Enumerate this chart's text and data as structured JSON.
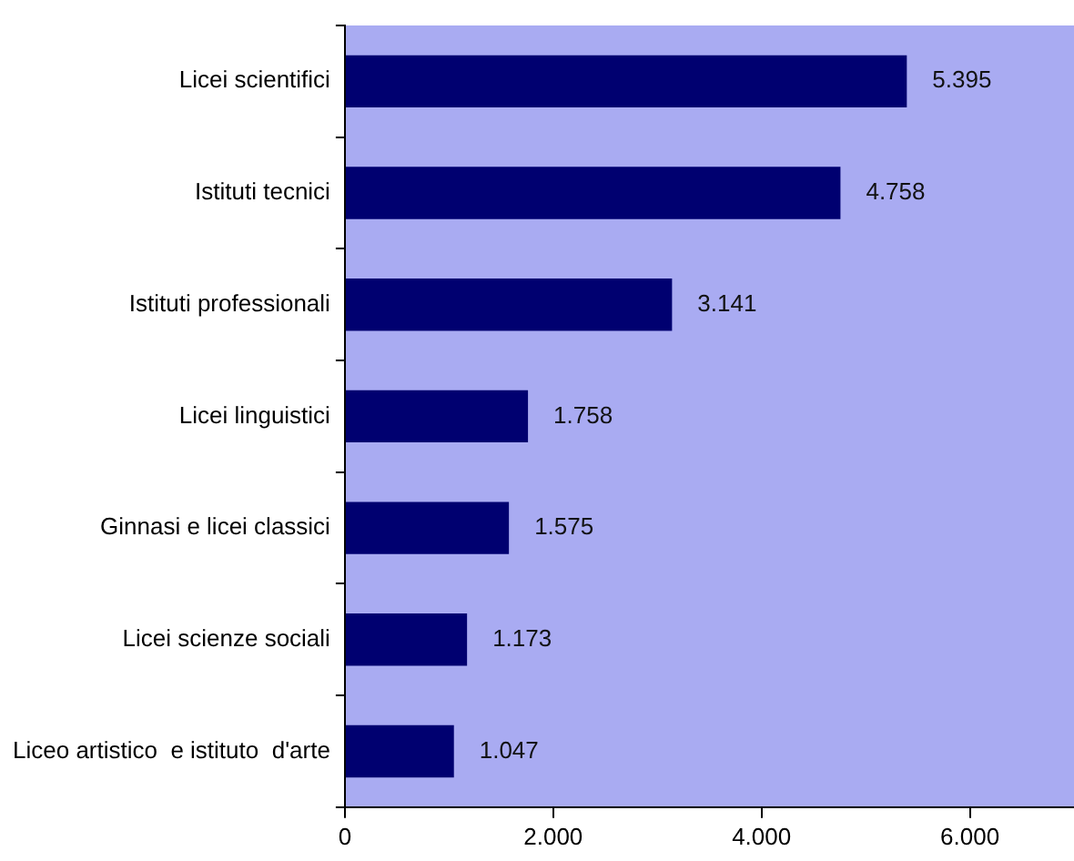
{
  "chart_data": {
    "type": "bar",
    "orientation": "horizontal",
    "categories": [
      "Licei scientifici",
      "Istituti tecnici",
      "Istituti professionali",
      "Licei linguistici",
      "Ginnasi e licei classici",
      "Licei scienze sociali",
      "Liceo artistico  e istituto  d'arte"
    ],
    "values": [
      5395,
      4758,
      3141,
      1758,
      1575,
      1173,
      1047
    ],
    "value_labels": [
      "5.395",
      "4.758",
      "3.141",
      "1.758",
      "1.575",
      "1.173",
      "1.047"
    ],
    "color": "#000070",
    "xlim": [
      0,
      7000
    ],
    "xticks": [
      0,
      {
        "value": 2000,
        "label": "2.000"
      },
      {
        "value": 4000,
        "label": "4.000"
      },
      {
        "value": 6000,
        "label": "6.000"
      }
    ],
    "grid": false,
    "legend": false
  }
}
